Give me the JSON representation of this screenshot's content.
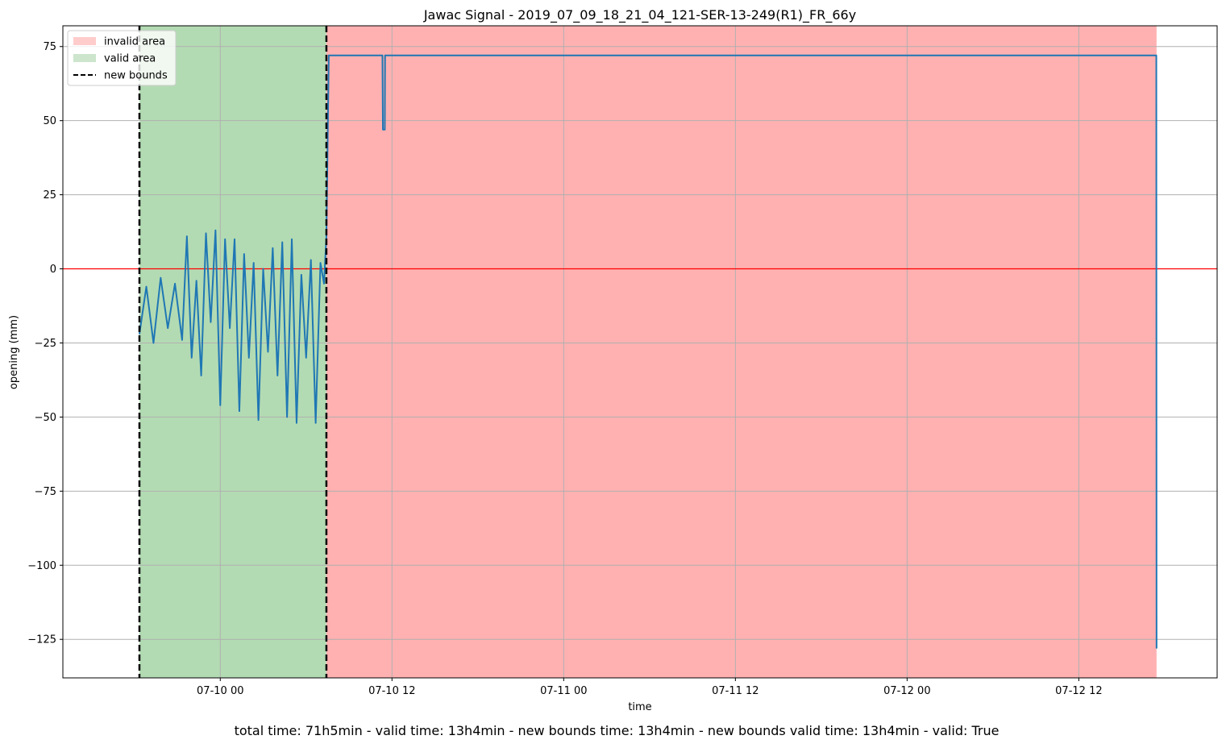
{
  "summary": "total time: 71h5min - valid time: 13h4min - new bounds time: 13h4min - new bounds valid time: 13h4min - valid: True",
  "chart_data": {
    "type": "line",
    "title": "Jawac Signal - 2019_07_09_18_21_04_121-SER-13-249(R1)_FR_66y",
    "xlabel": "time",
    "ylabel": "opening (mm)",
    "x_start": "2019-07-09 18:21",
    "x_end": "2019-07-12 17:26",
    "xlim": [
      "2019-07-09 13:00",
      "2019-07-12 21:40"
    ],
    "ylim": [
      -138,
      82
    ],
    "x_ticks": [
      {
        "t": "2019-07-10 00:00",
        "label": "07-10 00"
      },
      {
        "t": "2019-07-10 12:00",
        "label": "07-10 12"
      },
      {
        "t": "2019-07-11 00:00",
        "label": "07-11 00"
      },
      {
        "t": "2019-07-11 12:00",
        "label": "07-11 12"
      },
      {
        "t": "2019-07-12 00:00",
        "label": "07-12 00"
      },
      {
        "t": "2019-07-12 12:00",
        "label": "07-12 12"
      }
    ],
    "y_ticks": [
      75,
      50,
      25,
      0,
      -25,
      -50,
      -75,
      -100,
      -125
    ],
    "y_tick_labels": [
      "75",
      "50",
      "25",
      "0",
      "−25",
      "−50",
      "−75",
      "−100",
      "−125"
    ],
    "grid": true,
    "zero_line": {
      "y": 0,
      "color": "#ff0000"
    },
    "regions": [
      {
        "name": "valid area",
        "start": "2019-07-09 18:21",
        "end": "2019-07-10 07:25",
        "color": "#b3dbb3"
      },
      {
        "name": "invalid area",
        "start": "2019-07-10 07:25",
        "end": "2019-07-12 17:26",
        "color": "#ffb1b1"
      }
    ],
    "bounds": [
      "2019-07-09 18:21",
      "2019-07-10 07:25"
    ],
    "legend": {
      "position": "upper-left",
      "entries": [
        {
          "label": "invalid area",
          "kind": "patch",
          "color": "#ffcccc"
        },
        {
          "label": "valid area",
          "kind": "patch",
          "color": "#cce5cc"
        },
        {
          "label": "new bounds",
          "kind": "dashed-line",
          "color": "#000000"
        }
      ]
    },
    "series": [
      {
        "color": "#1f77b4",
        "points": [
          [
            "2019-07-09 18:21",
            -22
          ],
          [
            "2019-07-09 18:50",
            -6
          ],
          [
            "2019-07-09 19:20",
            -25
          ],
          [
            "2019-07-09 19:50",
            -3
          ],
          [
            "2019-07-09 20:20",
            -20
          ],
          [
            "2019-07-09 20:50",
            -5
          ],
          [
            "2019-07-09 21:20",
            -24
          ],
          [
            "2019-07-09 21:40",
            11
          ],
          [
            "2019-07-09 22:00",
            -30
          ],
          [
            "2019-07-09 22:20",
            -4
          ],
          [
            "2019-07-09 22:40",
            -36
          ],
          [
            "2019-07-09 23:00",
            12
          ],
          [
            "2019-07-09 23:20",
            -18
          ],
          [
            "2019-07-09 23:40",
            13
          ],
          [
            "2019-07-10 00:00",
            -46
          ],
          [
            "2019-07-10 00:20",
            10
          ],
          [
            "2019-07-10 00:40",
            -20
          ],
          [
            "2019-07-10 01:00",
            10
          ],
          [
            "2019-07-10 01:20",
            -48
          ],
          [
            "2019-07-10 01:40",
            5
          ],
          [
            "2019-07-10 02:00",
            -30
          ],
          [
            "2019-07-10 02:20",
            2
          ],
          [
            "2019-07-10 02:40",
            -51
          ],
          [
            "2019-07-10 03:00",
            0
          ],
          [
            "2019-07-10 03:20",
            -28
          ],
          [
            "2019-07-10 03:40",
            7
          ],
          [
            "2019-07-10 04:00",
            -36
          ],
          [
            "2019-07-10 04:20",
            9
          ],
          [
            "2019-07-10 04:40",
            -50
          ],
          [
            "2019-07-10 05:00",
            10
          ],
          [
            "2019-07-10 05:20",
            -52
          ],
          [
            "2019-07-10 05:40",
            -2
          ],
          [
            "2019-07-10 06:00",
            -30
          ],
          [
            "2019-07-10 06:20",
            3
          ],
          [
            "2019-07-10 06:40",
            -52
          ],
          [
            "2019-07-10 07:00",
            2
          ],
          [
            "2019-07-10 07:15",
            -5
          ],
          [
            "2019-07-10 07:25",
            11
          ],
          [
            "2019-07-10 07:35",
            72
          ],
          [
            "2019-07-10 11:20",
            72
          ],
          [
            "2019-07-10 11:22",
            47
          ],
          [
            "2019-07-10 11:30",
            47
          ],
          [
            "2019-07-10 11:31",
            72
          ],
          [
            "2019-07-12 17:25",
            72
          ],
          [
            "2019-07-12 17:26",
            -128
          ]
        ]
      }
    ]
  }
}
